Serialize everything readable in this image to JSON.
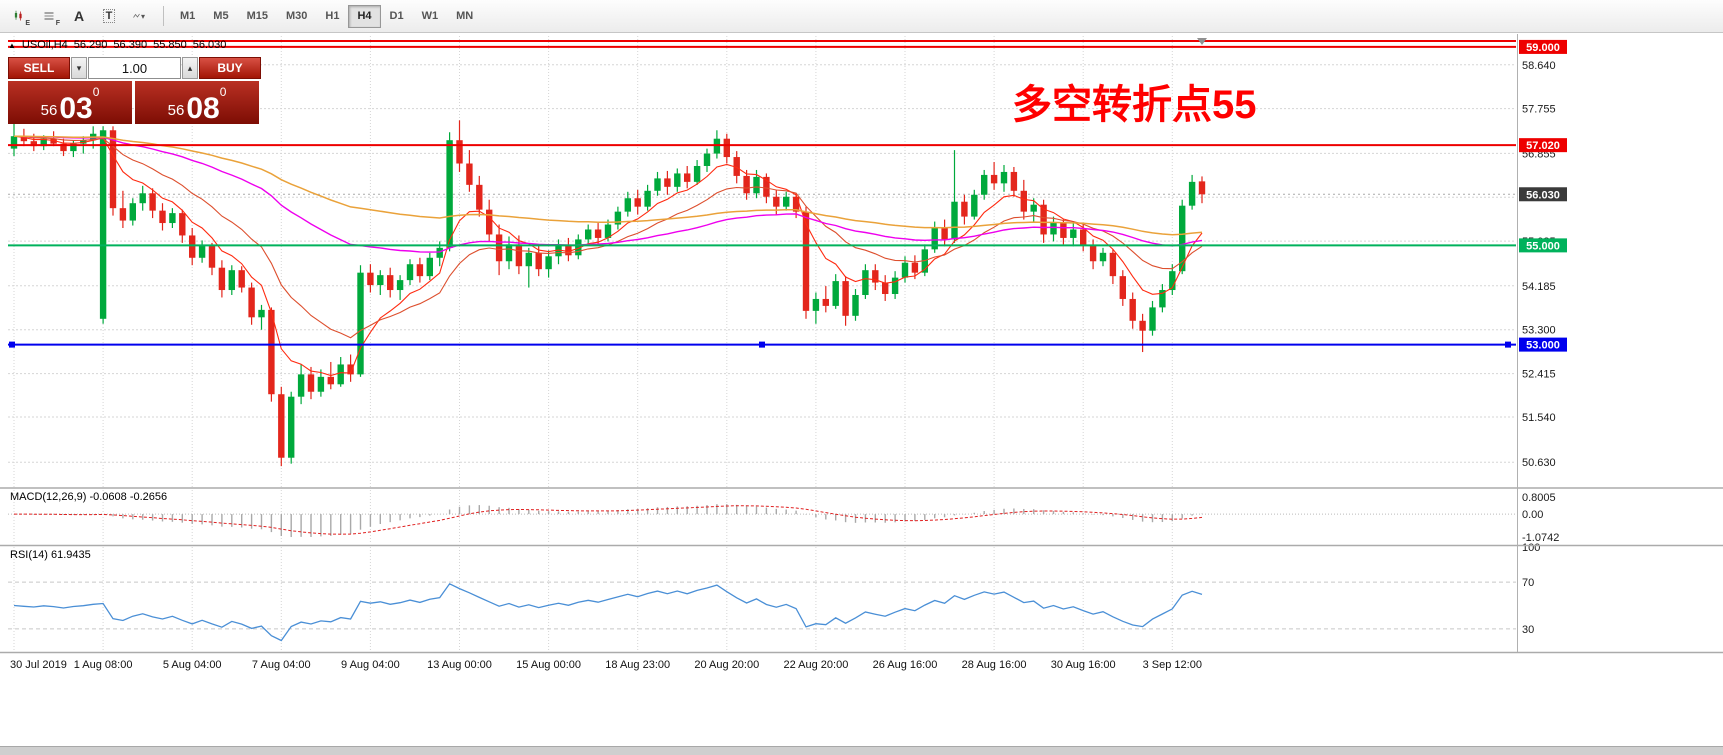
{
  "colors": {
    "up": "#00a93c",
    "down": "#e3261c",
    "grid": "#d5d5d5",
    "axis_text": "#1a1a1a",
    "red_line": "#ee0000",
    "green_line": "#00b25c",
    "blue_line": "#0000ee",
    "current_tag_bg": "#3a3a3a",
    "annotation": "#ff0000",
    "macd_hist": "#a9a9a9",
    "macd_signal": "#e02020",
    "rsi_line": "#4a8fd6"
  },
  "icons": {
    "symbol_marker": "▲",
    "shift_marker": "▼",
    "vol_down": "▾",
    "vol_up": "▴",
    "text_tool": "A",
    "template_tool": "T",
    "sub_e": "E",
    "sub_f": "F",
    "tools_caret": "▾"
  },
  "toolbar": {
    "active": "H4",
    "timeframes": [
      {
        "label": "M1"
      },
      {
        "label": "M5"
      },
      {
        "label": "M15"
      },
      {
        "label": "M30"
      },
      {
        "label": "H1"
      },
      {
        "label": "H4"
      },
      {
        "label": "D1"
      },
      {
        "label": "W1"
      },
      {
        "label": "MN"
      }
    ]
  },
  "symbol_header": {
    "symbol": "USOil,H4",
    "open": "56.290",
    "high": "56.390",
    "low": "55.850",
    "close": "56.030"
  },
  "one_click": {
    "sell_label": "SELL",
    "buy_label": "BUY",
    "volume": "1.00",
    "bid": {
      "whole": "56",
      "pips": "03",
      "pipette": "0"
    },
    "ask": {
      "whole": "56",
      "pips": "08",
      "pipette": "0"
    }
  },
  "annotation": {
    "text": "多空转折点55"
  },
  "chart_data": {
    "type": "candlestick",
    "symbol": "USOil",
    "timeframe": "H4",
    "ylim": [
      50.13,
      59.22
    ],
    "y_gridlines": [
      58.64,
      57.755,
      56.855,
      55.97,
      55.085,
      54.185,
      53.3,
      52.415,
      51.54,
      50.63
    ],
    "current_price": {
      "value": 56.03,
      "label": "56.030"
    },
    "h_lines": [
      {
        "price": 59.12,
        "color": "#ee0000",
        "label": null,
        "selected": false
      },
      {
        "price": 59.0,
        "color": "#ee0000",
        "label": "59.000",
        "selected": false
      },
      {
        "price": 57.02,
        "color": "#ee0000",
        "label": "57.020",
        "selected": false
      },
      {
        "price": 55.0,
        "color": "#00b25c",
        "label": "55.000",
        "selected": false
      },
      {
        "price": 53.0,
        "color": "#0000ee",
        "label": "53.000",
        "selected": true
      }
    ],
    "x_labels": [
      "30 Jul 2019",
      "1 Aug 08:00",
      "5 Aug 04:00",
      "7 Aug 04:00",
      "9 Aug 04:00",
      "13 Aug 00:00",
      "15 Aug 00:00",
      "18 Aug 23:00",
      "20 Aug 20:00",
      "22 Aug 20:00",
      "26 Aug 16:00",
      "28 Aug 16:00",
      "30 Aug 16:00",
      "3 Sep 12:00"
    ],
    "x_label_indices": [
      0,
      9,
      18,
      27,
      36,
      45,
      54,
      63,
      72,
      81,
      90,
      99,
      108,
      117
    ],
    "ma_overlays": [
      {
        "period": 7,
        "color": "#ff2a10",
        "width": 1.1
      },
      {
        "period": 17,
        "color": "#dd4f2e",
        "width": 1.1
      },
      {
        "period": 55,
        "color": "#ee00ee",
        "width": 1.4
      },
      {
        "period": 96,
        "color": "#eaa23a",
        "width": 1.5
      }
    ],
    "indicators": {
      "macd": {
        "label": "MACD(12,26,9) -0.0608 -0.2656",
        "fast": 12,
        "slow": 26,
        "signal": 9,
        "axis_labels": [
          "0.8005",
          "0.00",
          "-1.0742"
        ],
        "axis_max": 0.8005,
        "axis_min": -1.0742
      },
      "rsi": {
        "label": "RSI(14) 61.9435",
        "period": 14,
        "axis_labels": [
          "100",
          "70",
          "30"
        ],
        "levels": [
          70,
          30
        ]
      }
    },
    "candles": [
      [
        56.95,
        57.45,
        56.8,
        57.2
      ],
      [
        57.2,
        57.35,
        57.0,
        57.1
      ],
      [
        57.1,
        57.25,
        56.9,
        57.0
      ],
      [
        57.0,
        57.22,
        56.92,
        57.15
      ],
      [
        57.15,
        57.3,
        57.0,
        57.05
      ],
      [
        57.05,
        57.15,
        56.8,
        56.9
      ],
      [
        56.9,
        57.12,
        56.78,
        57.05
      ],
      [
        57.05,
        57.2,
        56.85,
        57.12
      ],
      [
        57.12,
        57.4,
        56.95,
        57.25
      ],
      [
        53.52,
        57.4,
        53.42,
        57.32
      ],
      [
        57.32,
        57.4,
        55.6,
        55.75
      ],
      [
        55.75,
        56.1,
        55.35,
        55.5
      ],
      [
        55.5,
        55.95,
        55.4,
        55.85
      ],
      [
        55.85,
        56.2,
        55.7,
        56.05
      ],
      [
        56.05,
        56.15,
        55.55,
        55.7
      ],
      [
        55.7,
        55.85,
        55.3,
        55.45
      ],
      [
        55.45,
        55.75,
        55.35,
        55.65
      ],
      [
        55.65,
        55.72,
        55.05,
        55.2
      ],
      [
        55.2,
        55.35,
        54.6,
        54.75
      ],
      [
        54.75,
        55.1,
        54.65,
        55.0
      ],
      [
        55.0,
        55.05,
        54.4,
        54.55
      ],
      [
        54.55,
        54.7,
        53.95,
        54.1
      ],
      [
        54.1,
        54.6,
        54.0,
        54.5
      ],
      [
        54.5,
        54.58,
        54.05,
        54.15
      ],
      [
        54.15,
        54.25,
        53.4,
        53.55
      ],
      [
        53.55,
        53.8,
        53.3,
        53.7
      ],
      [
        53.7,
        53.75,
        51.85,
        52.0
      ],
      [
        52.0,
        52.15,
        50.55,
        50.72
      ],
      [
        50.72,
        52.05,
        50.6,
        51.95
      ],
      [
        51.95,
        52.6,
        51.8,
        52.4
      ],
      [
        52.4,
        52.55,
        51.9,
        52.05
      ],
      [
        52.05,
        52.5,
        51.95,
        52.35
      ],
      [
        52.35,
        52.65,
        52.1,
        52.2
      ],
      [
        52.2,
        52.75,
        52.15,
        52.6
      ],
      [
        52.6,
        52.8,
        52.25,
        52.4
      ],
      [
        52.4,
        54.6,
        52.35,
        54.45
      ],
      [
        54.45,
        54.62,
        54.05,
        54.2
      ],
      [
        54.2,
        54.5,
        54.0,
        54.4
      ],
      [
        54.4,
        54.55,
        53.95,
        54.1
      ],
      [
        54.1,
        54.4,
        53.9,
        54.3
      ],
      [
        54.3,
        54.72,
        54.2,
        54.62
      ],
      [
        54.62,
        54.75,
        54.25,
        54.38
      ],
      [
        54.38,
        54.85,
        54.3,
        54.75
      ],
      [
        54.75,
        55.08,
        54.58,
        54.95
      ],
      [
        54.95,
        57.28,
        54.88,
        57.12
      ],
      [
        57.12,
        57.52,
        56.48,
        56.65
      ],
      [
        56.65,
        56.92,
        56.08,
        56.22
      ],
      [
        56.22,
        56.4,
        55.58,
        55.72
      ],
      [
        55.72,
        55.92,
        55.08,
        55.22
      ],
      [
        55.22,
        55.42,
        54.4,
        54.68
      ],
      [
        54.68,
        55.18,
        54.52,
        55.02
      ],
      [
        55.02,
        55.2,
        54.42,
        54.58
      ],
      [
        54.58,
        54.95,
        54.15,
        54.85
      ],
      [
        54.85,
        55.0,
        54.38,
        54.52
      ],
      [
        54.52,
        54.9,
        54.35,
        54.78
      ],
      [
        54.78,
        55.12,
        54.62,
        55.0
      ],
      [
        55.0,
        55.15,
        54.68,
        54.8
      ],
      [
        54.8,
        55.22,
        54.72,
        55.12
      ],
      [
        55.12,
        55.42,
        55.02,
        55.32
      ],
      [
        55.32,
        55.45,
        55.02,
        55.15
      ],
      [
        55.15,
        55.52,
        55.08,
        55.42
      ],
      [
        55.42,
        55.78,
        55.32,
        55.68
      ],
      [
        55.68,
        56.08,
        55.58,
        55.95
      ],
      [
        55.95,
        56.12,
        55.62,
        55.78
      ],
      [
        55.78,
        56.22,
        55.7,
        56.1
      ],
      [
        56.1,
        56.48,
        56.0,
        56.35
      ],
      [
        56.35,
        56.5,
        56.02,
        56.18
      ],
      [
        56.18,
        56.55,
        56.08,
        56.45
      ],
      [
        56.45,
        56.6,
        56.15,
        56.28
      ],
      [
        56.28,
        56.72,
        56.22,
        56.6
      ],
      [
        56.6,
        56.95,
        56.48,
        56.85
      ],
      [
        56.85,
        57.32,
        56.75,
        57.15
      ],
      [
        57.15,
        57.25,
        56.65,
        56.78
      ],
      [
        56.78,
        56.9,
        56.25,
        56.4
      ],
      [
        56.4,
        56.52,
        55.92,
        56.05
      ],
      [
        56.05,
        56.52,
        55.95,
        56.38
      ],
      [
        56.38,
        56.45,
        55.85,
        55.98
      ],
      [
        55.98,
        56.12,
        55.62,
        55.78
      ],
      [
        55.78,
        56.08,
        55.7,
        55.98
      ],
      [
        55.98,
        56.05,
        55.55,
        55.68
      ],
      [
        55.68,
        55.78,
        53.52,
        53.68
      ],
      [
        53.68,
        54.05,
        53.42,
        53.92
      ],
      [
        53.92,
        54.18,
        53.65,
        53.78
      ],
      [
        53.78,
        54.42,
        53.72,
        54.28
      ],
      [
        54.28,
        54.38,
        53.38,
        53.58
      ],
      [
        53.58,
        54.12,
        53.48,
        54.0
      ],
      [
        54.0,
        54.62,
        53.92,
        54.5
      ],
      [
        54.5,
        54.62,
        54.1,
        54.25
      ],
      [
        54.25,
        54.4,
        53.88,
        54.02
      ],
      [
        54.02,
        54.48,
        53.92,
        54.35
      ],
      [
        54.35,
        54.78,
        54.25,
        54.65
      ],
      [
        54.65,
        54.8,
        54.32,
        54.45
      ],
      [
        54.45,
        55.02,
        54.38,
        54.92
      ],
      [
        54.92,
        55.48,
        54.85,
        55.35
      ],
      [
        55.35,
        55.52,
        54.98,
        55.12
      ],
      [
        55.12,
        56.92,
        55.05,
        55.88
      ],
      [
        55.88,
        56.02,
        55.42,
        55.58
      ],
      [
        55.58,
        56.12,
        55.52,
        56.02
      ],
      [
        56.02,
        56.52,
        55.92,
        56.42
      ],
      [
        56.42,
        56.68,
        56.12,
        56.25
      ],
      [
        56.25,
        56.62,
        56.08,
        56.48
      ],
      [
        56.48,
        56.58,
        55.98,
        56.1
      ],
      [
        56.1,
        56.32,
        55.52,
        55.68
      ],
      [
        55.68,
        55.95,
        55.48,
        55.82
      ],
      [
        55.82,
        55.92,
        55.05,
        55.22
      ],
      [
        55.22,
        55.58,
        55.08,
        55.45
      ],
      [
        55.45,
        55.52,
        55.02,
        55.15
      ],
      [
        55.15,
        55.48,
        54.98,
        55.32
      ],
      [
        55.32,
        55.42,
        54.88,
        55.0
      ],
      [
        55.0,
        55.12,
        54.52,
        54.68
      ],
      [
        54.68,
        54.95,
        54.58,
        54.85
      ],
      [
        54.85,
        54.92,
        54.22,
        54.38
      ],
      [
        54.38,
        54.5,
        53.78,
        53.92
      ],
      [
        53.92,
        54.05,
        53.32,
        53.48
      ],
      [
        53.48,
        53.62,
        52.85,
        53.28
      ],
      [
        53.28,
        53.88,
        53.18,
        53.75
      ],
      [
        53.75,
        54.22,
        53.65,
        54.1
      ],
      [
        54.1,
        54.62,
        54.0,
        54.48
      ],
      [
        54.48,
        55.92,
        54.42,
        55.8
      ],
      [
        55.8,
        56.42,
        55.72,
        56.28
      ],
      [
        56.29,
        56.39,
        55.85,
        56.03
      ]
    ]
  }
}
